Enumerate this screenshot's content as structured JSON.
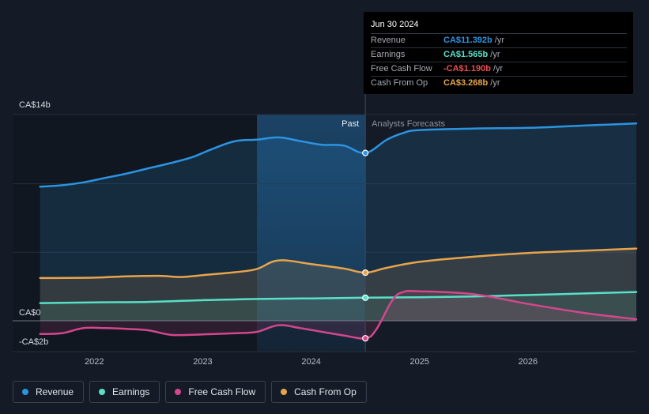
{
  "chart_data": {
    "type": "area",
    "title": "",
    "y_axis": {
      "unit": "CA$",
      "top_label": "CA$14b",
      "zero_label": "CA$0",
      "bottom_label": "-CA$2b",
      "min": -2,
      "max": 14
    },
    "x_axis": {
      "ticks": [
        "2022",
        "2023",
        "2024",
        "2025",
        "2026"
      ],
      "tick_values": [
        2022,
        2023,
        2024,
        2025,
        2026
      ],
      "min": 2021.48,
      "max": 2027.0
    },
    "regions": {
      "past_label": "Past",
      "forecast_label": "Analysts Forecasts",
      "divider_x": 2024.5,
      "highlight_start": 2023.5
    },
    "series": [
      {
        "name": "Revenue",
        "color": "#2b94e1",
        "points": [
          [
            2021.5,
            9.1
          ],
          [
            2021.7,
            9.2
          ],
          [
            2021.9,
            9.4
          ],
          [
            2022.1,
            9.7
          ],
          [
            2022.3,
            10.0
          ],
          [
            2022.5,
            10.35
          ],
          [
            2022.7,
            10.7
          ],
          [
            2022.9,
            11.1
          ],
          [
            2023.1,
            11.7
          ],
          [
            2023.3,
            12.2
          ],
          [
            2023.5,
            12.3
          ],
          [
            2023.7,
            12.45
          ],
          [
            2023.9,
            12.2
          ],
          [
            2024.1,
            11.95
          ],
          [
            2024.3,
            11.9
          ],
          [
            2024.5,
            11.392
          ],
          [
            2024.7,
            12.3
          ],
          [
            2024.85,
            12.75
          ],
          [
            2025.0,
            12.95
          ],
          [
            2025.5,
            13.05
          ],
          [
            2026.0,
            13.1
          ],
          [
            2026.5,
            13.25
          ],
          [
            2027.0,
            13.4
          ]
        ]
      },
      {
        "name": "Earnings",
        "color": "#58e0c8",
        "points": [
          [
            2021.5,
            1.2
          ],
          [
            2022.0,
            1.25
          ],
          [
            2022.5,
            1.28
          ],
          [
            2023.0,
            1.4
          ],
          [
            2023.3,
            1.45
          ],
          [
            2023.5,
            1.48
          ],
          [
            2024.0,
            1.52
          ],
          [
            2024.5,
            1.565
          ],
          [
            2025.0,
            1.6
          ],
          [
            2025.5,
            1.65
          ],
          [
            2026.0,
            1.75
          ],
          [
            2026.5,
            1.85
          ],
          [
            2027.0,
            1.95
          ]
        ]
      },
      {
        "name": "Free Cash Flow",
        "color": "#d3478d",
        "points": [
          [
            2021.5,
            -0.9
          ],
          [
            2021.7,
            -0.85
          ],
          [
            2021.9,
            -0.5
          ],
          [
            2022.1,
            -0.5
          ],
          [
            2022.3,
            -0.55
          ],
          [
            2022.5,
            -0.65
          ],
          [
            2022.7,
            -0.95
          ],
          [
            2022.9,
            -0.95
          ],
          [
            2023.1,
            -0.9
          ],
          [
            2023.3,
            -0.85
          ],
          [
            2023.5,
            -0.75
          ],
          [
            2023.7,
            -0.3
          ],
          [
            2023.9,
            -0.5
          ],
          [
            2024.1,
            -0.75
          ],
          [
            2024.3,
            -1.0
          ],
          [
            2024.5,
            -1.19
          ],
          [
            2024.6,
            -0.6
          ],
          [
            2024.75,
            1.4
          ],
          [
            2024.85,
            1.95
          ],
          [
            2025.0,
            2.0
          ],
          [
            2025.5,
            1.8
          ],
          [
            2026.0,
            1.15
          ],
          [
            2026.5,
            0.55
          ],
          [
            2027.0,
            0.1
          ]
        ]
      },
      {
        "name": "Cash From Op",
        "color": "#e8a44c",
        "points": [
          [
            2021.5,
            2.9
          ],
          [
            2022.0,
            2.93
          ],
          [
            2022.3,
            3.02
          ],
          [
            2022.6,
            3.05
          ],
          [
            2022.8,
            2.97
          ],
          [
            2023.0,
            3.1
          ],
          [
            2023.3,
            3.3
          ],
          [
            2023.5,
            3.52
          ],
          [
            2023.7,
            4.1
          ],
          [
            2024.0,
            3.85
          ],
          [
            2024.3,
            3.55
          ],
          [
            2024.5,
            3.268
          ],
          [
            2024.7,
            3.6
          ],
          [
            2025.0,
            4.0
          ],
          [
            2025.5,
            4.35
          ],
          [
            2026.0,
            4.6
          ],
          [
            2026.5,
            4.75
          ],
          [
            2027.0,
            4.9
          ]
        ]
      }
    ]
  },
  "tooltip": {
    "date": "Jun 30 2024",
    "rows": [
      {
        "label": "Revenue",
        "value": "CA$11.392b",
        "unit": "/yr",
        "color": "#2b94e1"
      },
      {
        "label": "Earnings",
        "value": "CA$1.565b",
        "unit": "/yr",
        "color": "#58e0c8"
      },
      {
        "label": "Free Cash Flow",
        "value": "-CA$1.190b",
        "unit": "/yr",
        "color": "#ee4b52"
      },
      {
        "label": "Cash From Op",
        "value": "CA$3.268b",
        "unit": "/yr",
        "color": "#e8a44c"
      }
    ]
  },
  "legend": [
    {
      "label": "Revenue",
      "color": "#2b94e1"
    },
    {
      "label": "Earnings",
      "color": "#58e0c8"
    },
    {
      "label": "Free Cash Flow",
      "color": "#d3478d"
    },
    {
      "label": "Cash From Op",
      "color": "#e8a44c"
    }
  ]
}
